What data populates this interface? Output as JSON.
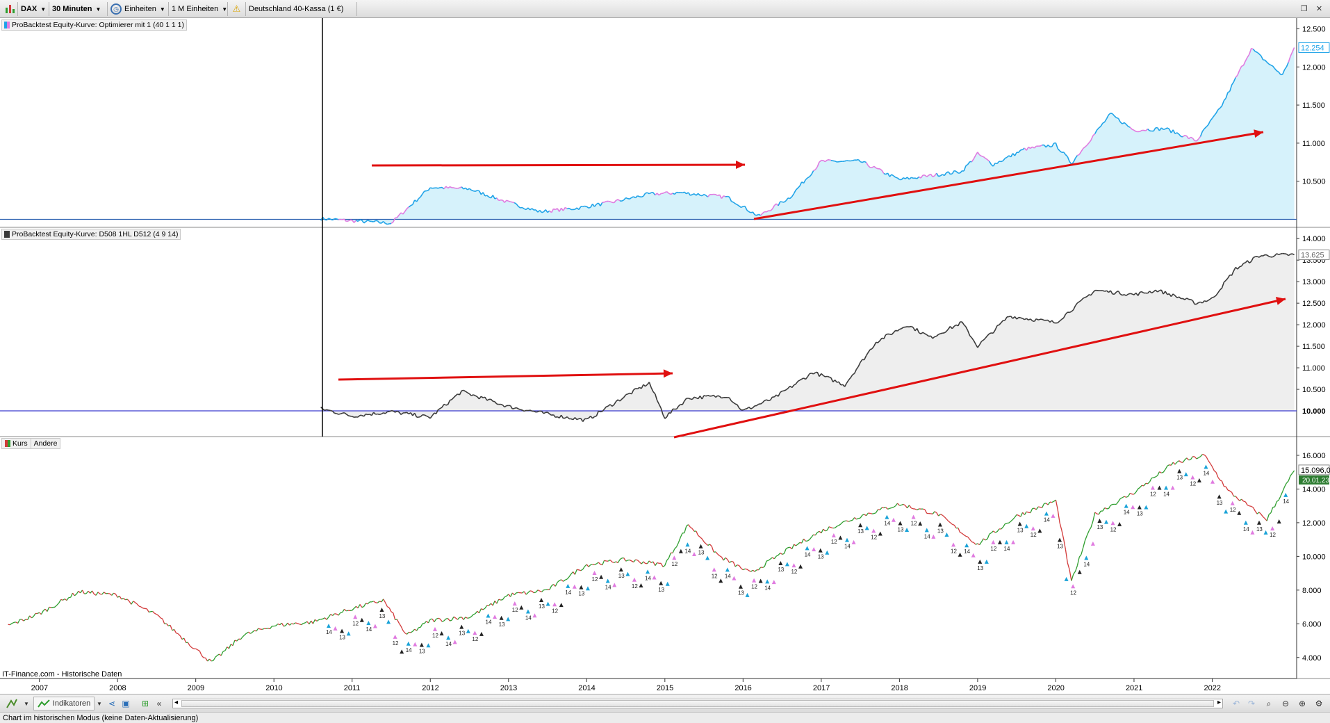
{
  "toolbar": {
    "symbol": "DAX",
    "timeframe": "30 Minuten",
    "units_label": "Einheiten",
    "units_count": "1 M Einheiten",
    "instrument": "Deutschland 40-Kassa (1 €)"
  },
  "panels": {
    "equity1": {
      "label": "ProBacktest Equity-Kurve: Optimierer mit 1 (40 1 1 1)",
      "current_value": "12.254",
      "y_ticks": [
        "12.500",
        "12.000",
        "11.500",
        "11.000",
        "10.500"
      ],
      "line_color": "#1fa3e8",
      "alt_color": "#e07be0",
      "fill_color": "#d6f2fb"
    },
    "equity2": {
      "label": "ProBacktest Equity-Kurve: D508 1HL D512 (4 9 14)",
      "current_value": "13.625",
      "baseline_label": "10.000",
      "y_ticks": [
        "14.000",
        "13.500",
        "13.000",
        "12.500",
        "12.000",
        "11.500",
        "11.000",
        "10.500"
      ],
      "line_color": "#3a3a3a",
      "fill_color": "#eeeeee"
    },
    "price": {
      "tab_kurs": "Kurs",
      "tab_andere": "Andere",
      "current_value": "15.096,0",
      "date_badge": "20.01.23",
      "source_note": "IT-Finance.com - Historische Daten",
      "y_ticks": [
        "16.000",
        "14.000",
        "12.000",
        "10.000",
        "8.000",
        "6.000",
        "4.000"
      ],
      "up_color": "#2e9e2e",
      "down_color": "#d23a3a"
    }
  },
  "x_axis": {
    "years": [
      "2007",
      "2008",
      "2009",
      "2010",
      "2011",
      "2012",
      "2013",
      "2014",
      "2015",
      "2016",
      "2017",
      "2018",
      "2019",
      "2020",
      "2021",
      "2022"
    ]
  },
  "chart_data": [
    {
      "type": "area",
      "series": [
        {
          "name": "ProBacktest Equity-Kurve: Optimierer mit 1 (40 1 1 1)",
          "x": [
            "2010.6",
            "2011.0",
            "2011.5",
            "2012.0",
            "2012.5",
            "2013.0",
            "2013.4",
            "2013.9",
            "2014.3",
            "2014.8",
            "2015.2",
            "2015.8",
            "2016.2",
            "2016.6",
            "2017.0",
            "2017.5",
            "2018.0",
            "2018.3",
            "2018.8",
            "2019.0",
            "2019.2",
            "2019.6",
            "2020.0",
            "2020.2",
            "2020.7",
            "2021.0",
            "2021.4",
            "2021.8",
            "2022.1",
            "2022.5",
            "2022.9",
            "2023.05"
          ],
          "values": [
            10010,
            9980,
            9950,
            10420,
            10400,
            10220,
            10100,
            10150,
            10220,
            10330,
            10350,
            10290,
            10040,
            10290,
            10760,
            10760,
            10520,
            10560,
            10630,
            10860,
            10720,
            10920,
            10980,
            10740,
            11380,
            11170,
            11190,
            11030,
            11450,
            12240,
            11890,
            12254
          ]
        }
      ],
      "ylim": [
        9950,
        12550
      ],
      "baseline": 10000
    },
    {
      "type": "area",
      "series": [
        {
          "name": "ProBacktest Equity-Kurve: D508 1HL D512 (4 9 14)",
          "x": [
            "2010.6",
            "2011.0",
            "2011.5",
            "2012.0",
            "2012.4",
            "2013.0",
            "2013.6",
            "2014.0",
            "2014.5",
            "2014.8",
            "2015.0",
            "2015.3",
            "2015.8",
            "2016.0",
            "2016.4",
            "2016.9",
            "2017.3",
            "2017.7",
            "2018.1",
            "2018.4",
            "2018.8",
            "2019.0",
            "2019.4",
            "2020.0",
            "2020.5",
            "2021.0",
            "2021.3",
            "2021.8",
            "2022.0",
            "2022.3",
            "2022.6",
            "2023.05"
          ],
          "values": [
            10050,
            9880,
            9980,
            9850,
            10450,
            10100,
            9890,
            9780,
            10350,
            10650,
            9850,
            10300,
            10350,
            10000,
            10300,
            10900,
            10600,
            11600,
            12000,
            11700,
            12050,
            11500,
            12200,
            12050,
            12800,
            12700,
            12800,
            12500,
            12600,
            13300,
            13600,
            13625
          ]
        }
      ],
      "ylim": [
        9500,
        14100
      ],
      "baseline": 10000
    },
    {
      "type": "line",
      "series": [
        {
          "name": "DAX",
          "x": [
            "2006.6",
            "2007.0",
            "2007.5",
            "2008.0",
            "2008.5",
            "2009.2",
            "2009.6",
            "2010.0",
            "2010.5",
            "2011.0",
            "2011.4",
            "2011.7",
            "2012.0",
            "2012.5",
            "2013.0",
            "2013.5",
            "2014.0",
            "2014.5",
            "2015.0",
            "2015.3",
            "2015.7",
            "2016.1",
            "2016.5",
            "2017.0",
            "2017.5",
            "2018.0",
            "2018.5",
            "2019.0",
            "2019.5",
            "2020.0",
            "2020.2",
            "2020.5",
            "2021.0",
            "2021.5",
            "2021.9",
            "2022.2",
            "2022.7",
            "2023.05"
          ],
          "values": [
            5900,
            6600,
            7900,
            7700,
            6500,
            3700,
            5300,
            5900,
            6100,
            6900,
            7400,
            5300,
            6200,
            6400,
            7700,
            8000,
            9500,
            9800,
            9500,
            11900,
            10000,
            9000,
            10200,
            11500,
            12400,
            13100,
            12500,
            10700,
            12400,
            13300,
            8500,
            12500,
            13800,
            15500,
            16000,
            13900,
            12200,
            15096
          ]
        }
      ],
      "ylim": [
        3000,
        16700
      ]
    }
  ]
}
